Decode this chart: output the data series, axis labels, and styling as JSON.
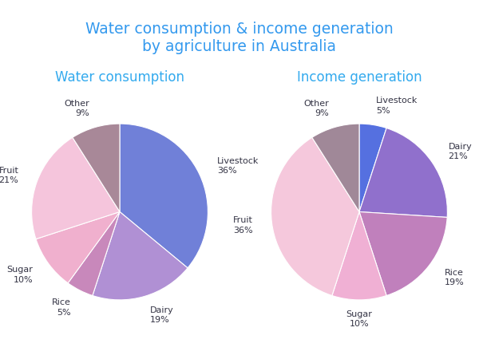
{
  "title": "Water consumption & income generation\nby agriculture in Australia",
  "title_color": "#3399ee",
  "title_fontsize": 13.5,
  "subtitle1": "Water consumption",
  "subtitle2": "Income generation",
  "subtitle_color": "#33aaee",
  "subtitle_fontsize": 12,
  "water_labels": [
    "Livestock",
    "Dairy",
    "Rice",
    "Sugar",
    "Fruit",
    "Other"
  ],
  "water_values": [
    36,
    19,
    5,
    10,
    21,
    9
  ],
  "water_colors": [
    "#7080D8",
    "#B090D4",
    "#C888BB",
    "#F0B0CE",
    "#F5C5DC",
    "#A88898"
  ],
  "income_labels": [
    "Livestock",
    "Dairy",
    "Rice",
    "Sugar",
    "Fruit",
    "Other"
  ],
  "income_values": [
    5,
    21,
    19,
    10,
    36,
    9
  ],
  "income_colors": [
    "#5570E0",
    "#9070CC",
    "#C080BC",
    "#F0B0D4",
    "#F5C8DC",
    "#A08898"
  ],
  "label_fontsize": 8,
  "label_color": "#333344",
  "background_color": "#ffffff"
}
